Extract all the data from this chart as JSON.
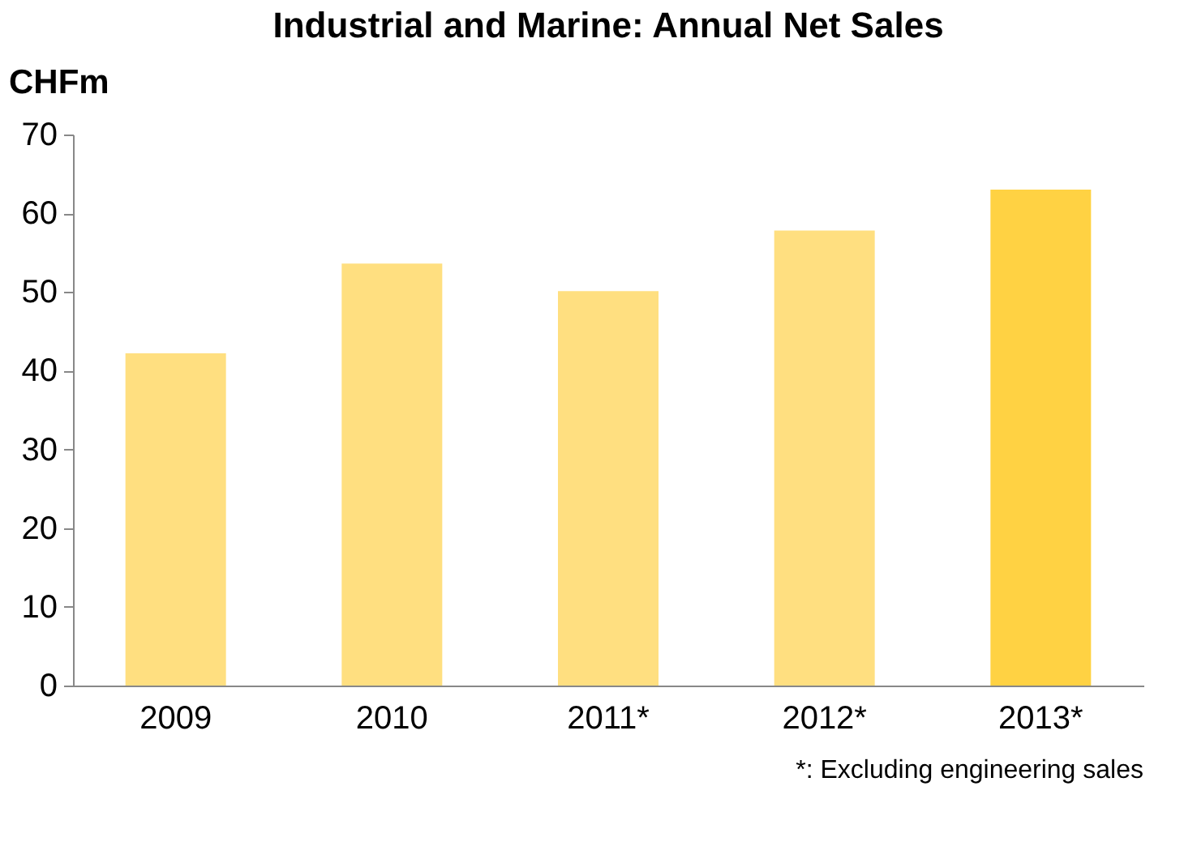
{
  "chart_data": {
    "type": "bar",
    "title": "Industrial and Marine: Annual Net Sales",
    "ylabel": "CHFm",
    "categories": [
      "2009",
      "2010",
      "2011*",
      "2012*",
      "2013*"
    ],
    "values": [
      42.2,
      53.6,
      50.1,
      57.8,
      63.0
    ],
    "colors": [
      "#ffdf80",
      "#ffdf80",
      "#ffdf80",
      "#ffdf80",
      "#ffd243"
    ],
    "ylim": [
      0,
      70
    ],
    "yticks": [
      0,
      10,
      20,
      30,
      40,
      50,
      60,
      70
    ],
    "grid": false,
    "annotations": [
      "*: Excluding engineering sales"
    ]
  }
}
